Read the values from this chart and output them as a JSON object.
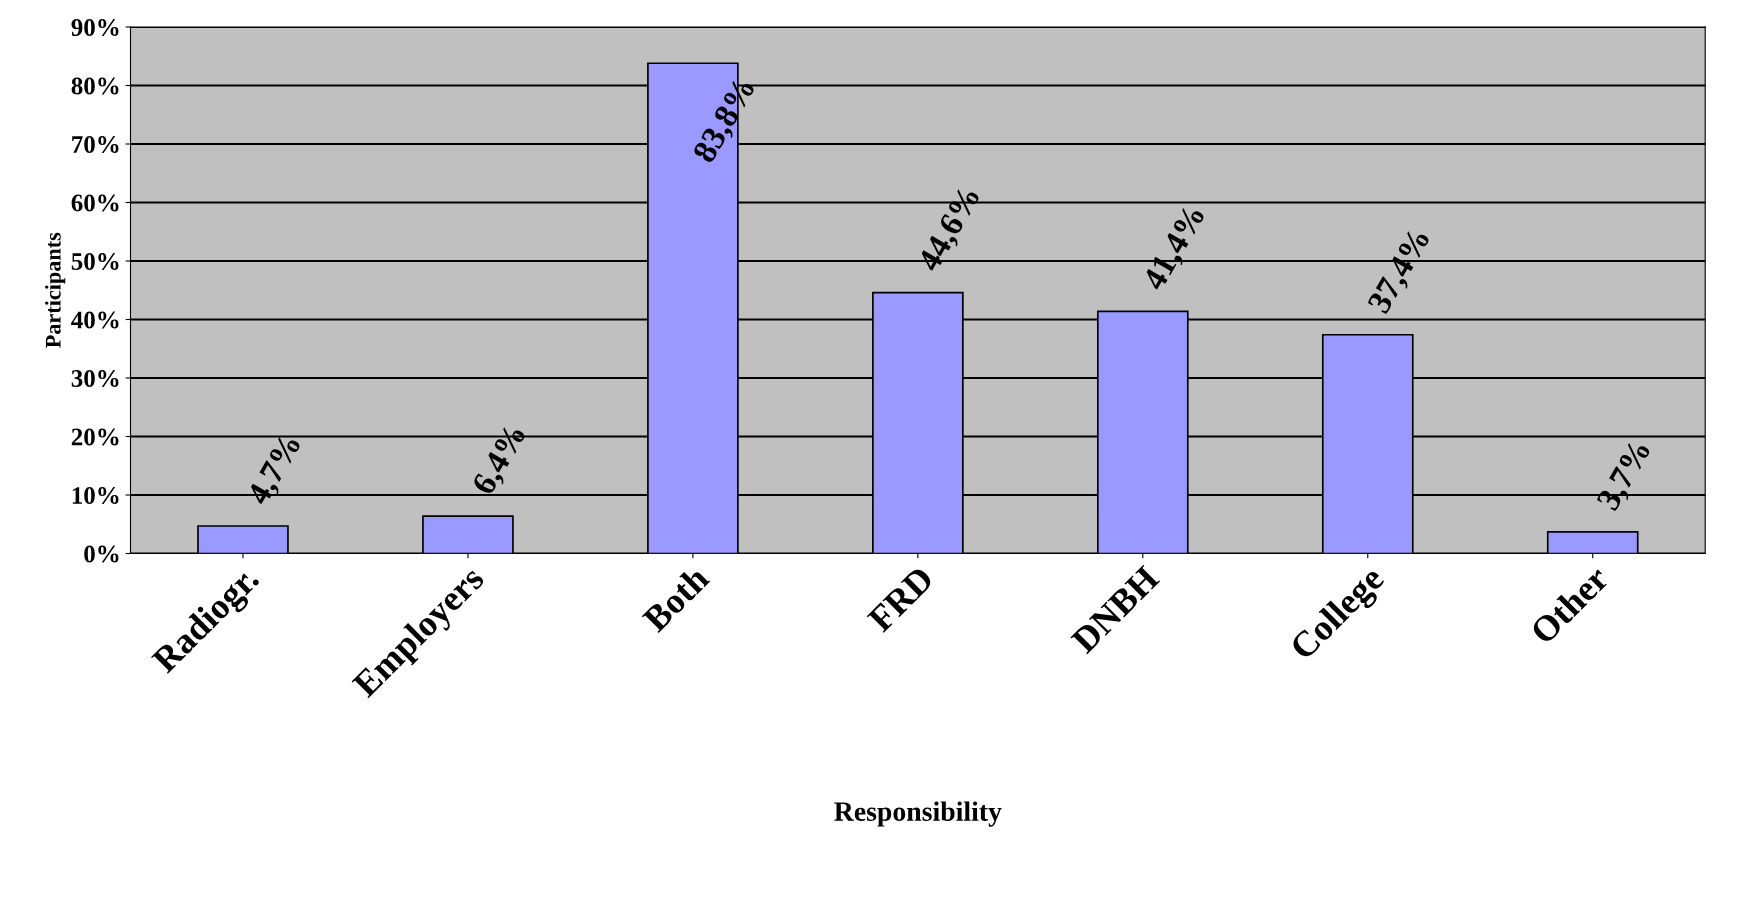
{
  "chart_data": {
    "type": "bar",
    "xlabel": "Responsibility",
    "ylabel": "Participants",
    "categories": [
      "Radiogr.",
      "Employers",
      "Both",
      "FRD",
      "DNBH",
      "College",
      "Other"
    ],
    "values": [
      4.7,
      6.4,
      83.8,
      44.6,
      41.4,
      37.4,
      3.7
    ],
    "value_labels": [
      "4,7%",
      "6,4%",
      "83,8%",
      "44,6%",
      "41,4%",
      "37,4%",
      "3,7%"
    ],
    "color": "#9999ff",
    "ylim": [
      0,
      90
    ],
    "yticks": [
      {
        "value": 0,
        "label": "0%"
      },
      {
        "value": 10,
        "label": "10%"
      },
      {
        "value": 20,
        "label": "20%"
      },
      {
        "value": 30,
        "label": "30%"
      },
      {
        "value": 40,
        "label": "40%"
      },
      {
        "value": 50,
        "label": "50%"
      },
      {
        "value": 60,
        "label": "60%"
      },
      {
        "value": 70,
        "label": "70%"
      },
      {
        "value": 80,
        "label": "80%"
      },
      {
        "value": 90,
        "label": "90%"
      }
    ],
    "grid": "y"
  }
}
